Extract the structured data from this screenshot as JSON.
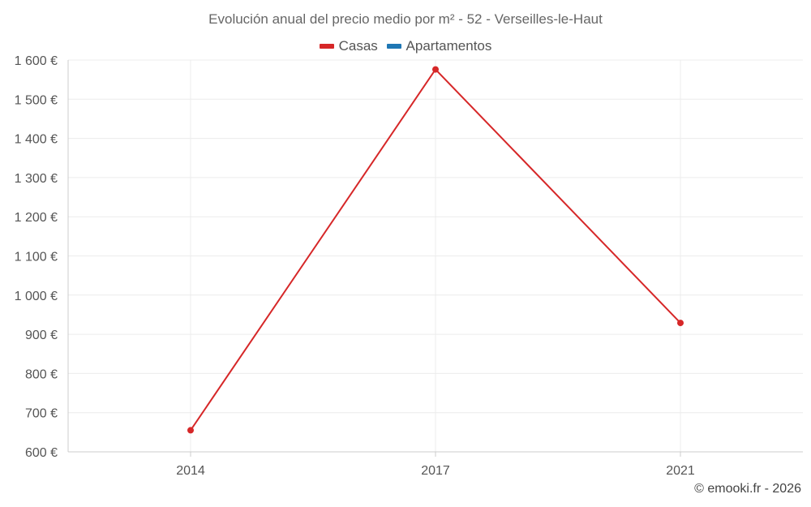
{
  "chart_data": {
    "type": "line",
    "title": "Evolución anual del precio medio por m² - 52 - Verseilles-le-Haut",
    "categories": [
      "2014",
      "2017",
      "2021"
    ],
    "series": [
      {
        "name": "Casas",
        "color": "#d62728",
        "values": [
          655,
          1576,
          929
        ]
      },
      {
        "name": "Apartamentos",
        "color": "#1f77b4",
        "values": [
          null,
          null,
          null
        ]
      }
    ],
    "ylim": [
      600,
      1600
    ],
    "yticks": [
      600,
      700,
      800,
      900,
      1000,
      1100,
      1200,
      1300,
      1400,
      1500,
      1600
    ],
    "ytick_labels": [
      "600 €",
      "700 €",
      "800 €",
      "900 €",
      "1 000 €",
      "1 100 €",
      "1 200 €",
      "1 300 €",
      "1 400 €",
      "1 500 €",
      "1 600 €"
    ],
    "xlabel": "",
    "ylabel": "",
    "grid": true,
    "legend_position": "top-center"
  },
  "credits": "© emooki.fr - 2026"
}
